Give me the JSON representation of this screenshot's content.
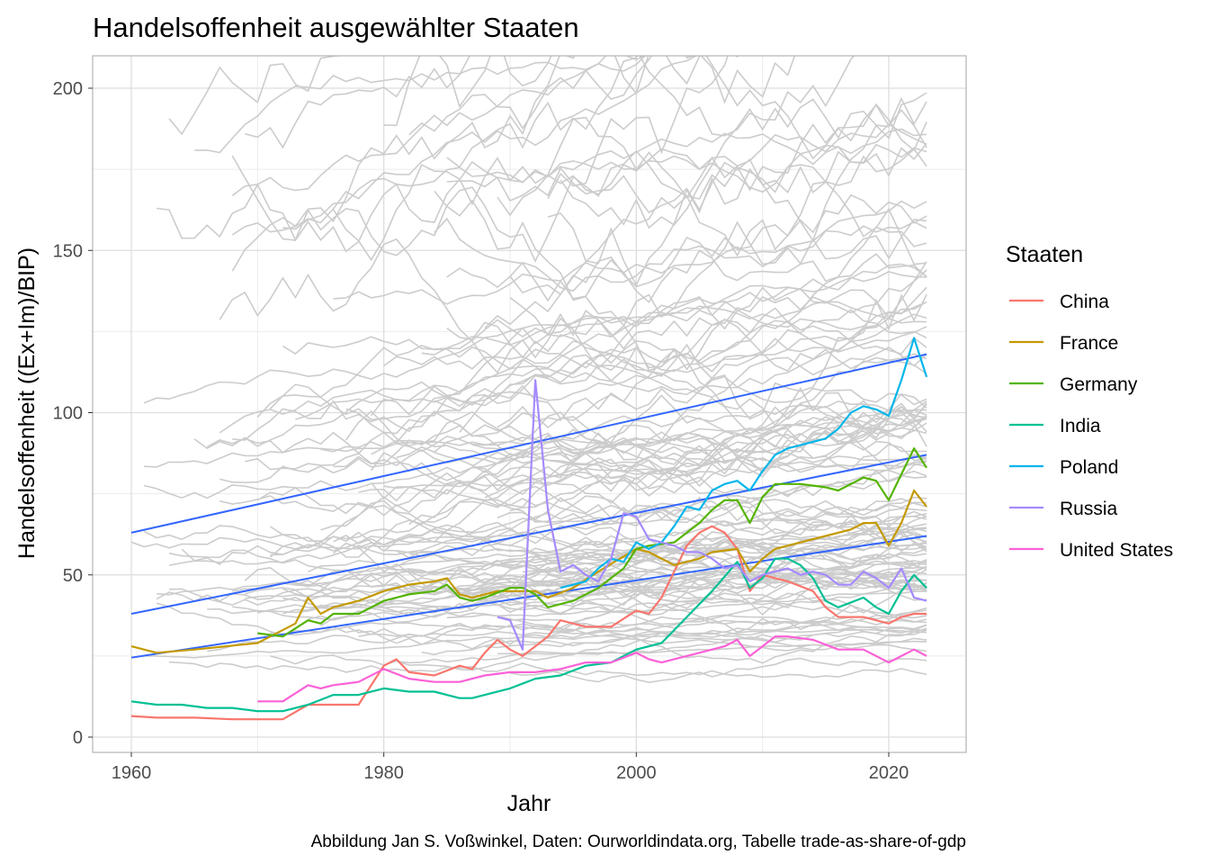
{
  "chart_data": {
    "type": "line",
    "title": "Handelsoffenheit ausgewählter Staaten",
    "xlabel": "Jahr",
    "ylabel": "Handelsoffenheit ((Ex+Im)/BIP)",
    "caption": "Abbildung Jan S. Voßwinkel,  Daten: Ourworldindata.org,  Tabelle trade-as-share-of-gdp",
    "xlim": [
      1957,
      2026
    ],
    "ylim": [
      -4,
      210
    ],
    "x_ticks": [
      1960,
      1980,
      2000,
      2020
    ],
    "y_ticks": [
      0,
      50,
      100,
      150,
      200
    ],
    "grid": true,
    "legend": {
      "title": "Staaten",
      "position": "right"
    },
    "series": [
      {
        "name": "China",
        "color": "#F8766D",
        "x": [
          1960,
          1962,
          1965,
          1968,
          1972,
          1974,
          1976,
          1978,
          1980,
          1981,
          1982,
          1984,
          1986,
          1987,
          1988,
          1989,
          1990,
          1991,
          1992,
          1993,
          1994,
          1996,
          1998,
          2000,
          2001,
          2002,
          2003,
          2004,
          2005,
          2006,
          2007,
          2008,
          2009,
          2010,
          2012,
          2014,
          2015,
          2016,
          2018,
          2020,
          2021,
          2022,
          2023
        ],
        "y": [
          6.5,
          6,
          6,
          5.5,
          5.5,
          10,
          10,
          10,
          22,
          24,
          20,
          19,
          22,
          21,
          26,
          30,
          27,
          25,
          28,
          31,
          36,
          34,
          34,
          39,
          38,
          43,
          51,
          59,
          63,
          65,
          63,
          58,
          45,
          50,
          48,
          45,
          40,
          37,
          37,
          35,
          37,
          38,
          38
        ]
      },
      {
        "name": "France",
        "color": "#C49A00",
        "x": [
          1960,
          1962,
          1965,
          1970,
          1973,
          1974,
          1975,
          1976,
          1978,
          1980,
          1982,
          1984,
          1985,
          1986,
          1987,
          1989,
          1990,
          1991,
          1992,
          1993,
          1995,
          1997,
          2000,
          2001,
          2003,
          2005,
          2006,
          2008,
          2009,
          2010,
          2011,
          2013,
          2015,
          2017,
          2018,
          2019,
          2020,
          2021,
          2022,
          2023
        ],
        "y": [
          28,
          26,
          27,
          29,
          35,
          43,
          38,
          40,
          42,
          45,
          47,
          48,
          49,
          44,
          43,
          45,
          45,
          45,
          45,
          43,
          46,
          51,
          58,
          57,
          53,
          55,
          57,
          58,
          51,
          55,
          58,
          60,
          62,
          64,
          66,
          66,
          59,
          66,
          76,
          71
        ]
      },
      {
        "name": "Germany",
        "color": "#53B400",
        "x": [
          1970,
          1972,
          1974,
          1975,
          1976,
          1978,
          1980,
          1982,
          1984,
          1985,
          1986,
          1987,
          1988,
          1990,
          1991,
          1992,
          1993,
          1995,
          1997,
          1999,
          2000,
          2001,
          2003,
          2005,
          2006,
          2007,
          2008,
          2009,
          2010,
          2011,
          2013,
          2015,
          2016,
          2018,
          2019,
          2020,
          2021,
          2022,
          2023
        ],
        "y": [
          32,
          31,
          36,
          35,
          38,
          38,
          42,
          44,
          45,
          47,
          43,
          42,
          43,
          46,
          46,
          44,
          40,
          42,
          46,
          52,
          58,
          59,
          60,
          66,
          70,
          73,
          73,
          66,
          74,
          78,
          78,
          77,
          76,
          80,
          79,
          73,
          81,
          89,
          83
        ]
      },
      {
        "name": "India",
        "color": "#00C094",
        "x": [
          1960,
          1962,
          1964,
          1966,
          1968,
          1970,
          1972,
          1974,
          1976,
          1978,
          1980,
          1982,
          1984,
          1986,
          1987,
          1988,
          1990,
          1992,
          1994,
          1996,
          1998,
          2000,
          2002,
          2004,
          2006,
          2008,
          2009,
          2010,
          2011,
          2012,
          2013,
          2014,
          2015,
          2016,
          2018,
          2019,
          2020,
          2021,
          2022,
          2023
        ],
        "y": [
          11,
          10,
          10,
          9,
          9,
          8,
          8,
          10,
          13,
          13,
          15,
          14,
          14,
          12,
          12,
          13,
          15,
          18,
          19,
          22,
          23,
          27,
          29,
          37,
          45,
          54,
          46,
          49,
          55,
          55,
          53,
          49,
          42,
          40,
          43,
          40,
          38,
          45,
          50,
          46
        ]
      },
      {
        "name": "Poland",
        "color": "#00B6EB",
        "x": [
          1994,
          1995,
          1996,
          1997,
          1998,
          1999,
          2000,
          2001,
          2002,
          2003,
          2004,
          2005,
          2006,
          2007,
          2008,
          2009,
          2010,
          2011,
          2012,
          2013,
          2014,
          2015,
          2016,
          2017,
          2018,
          2019,
          2020,
          2021,
          2022,
          2023
        ],
        "y": [
          46,
          47,
          48,
          52,
          55,
          54,
          60,
          58,
          60,
          65,
          71,
          70,
          76,
          78,
          79,
          76,
          82,
          87,
          89,
          90,
          91,
          92,
          95,
          100,
          102,
          101,
          99,
          110,
          123,
          111
        ]
      },
      {
        "name": "Russia",
        "color": "#A58AFF",
        "x": [
          1989,
          1990,
          1991,
          1992,
          1993,
          1994,
          1995,
          1996,
          1997,
          1998,
          1999,
          2000,
          2001,
          2002,
          2003,
          2004,
          2005,
          2006,
          2007,
          2008,
          2009,
          2010,
          2011,
          2012,
          2013,
          2014,
          2015,
          2016,
          2017,
          2018,
          2019,
          2020,
          2021,
          2022,
          2023
        ],
        "y": [
          37,
          36,
          27,
          110,
          70,
          51,
          53,
          50,
          48,
          55,
          69,
          68,
          61,
          60,
          59,
          57,
          57,
          55,
          52,
          53,
          48,
          50,
          51,
          52,
          50,
          51,
          50,
          47,
          47,
          51,
          49,
          46,
          52,
          43,
          42
        ]
      },
      {
        "name": "United States",
        "color": "#FB61D7",
        "x": [
          1970,
          1972,
          1974,
          1975,
          1976,
          1978,
          1980,
          1982,
          1984,
          1986,
          1988,
          1990,
          1992,
          1994,
          1996,
          1998,
          2000,
          2001,
          2002,
          2004,
          2006,
          2007,
          2008,
          2009,
          2010,
          2011,
          2012,
          2014,
          2016,
          2018,
          2020,
          2021,
          2022,
          2023
        ],
        "y": [
          11,
          11,
          16,
          15,
          16,
          17,
          21,
          18,
          17,
          17,
          19,
          20,
          20,
          21,
          23,
          23,
          26,
          24,
          23,
          25,
          27,
          28,
          30,
          25,
          28,
          31,
          31,
          30,
          27,
          27,
          23,
          25,
          27,
          25
        ]
      }
    ],
    "trend_lines": [
      {
        "x": [
          1960,
          2023
        ],
        "y": [
          63,
          118
        ],
        "color": "#3366FF"
      },
      {
        "x": [
          1960,
          2023
        ],
        "y": [
          38,
          87
        ],
        "color": "#3366FF"
      },
      {
        "x": [
          1960,
          2023
        ],
        "y": [
          24.5,
          62
        ],
        "color": "#3366FF"
      }
    ]
  }
}
